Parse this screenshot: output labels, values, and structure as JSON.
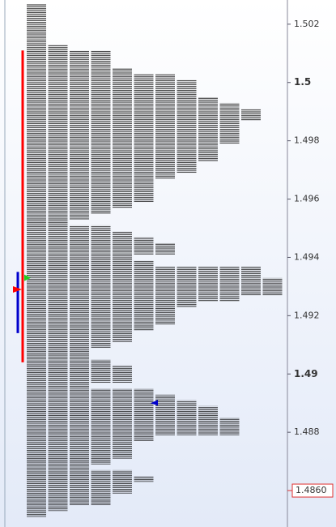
{
  "chart_data": {
    "type": "profile",
    "levels": [
      1.5026,
      1.5024,
      1.5022,
      1.502,
      1.5018,
      1.5016,
      1.5014,
      1.5012,
      1.501,
      1.5008,
      1.5006,
      1.5004,
      1.5002,
      1.5,
      1.4998,
      1.4996,
      1.4994,
      1.4992,
      1.499,
      1.4988,
      1.4986,
      1.4984,
      1.4982,
      1.498,
      1.4978,
      1.4976,
      1.4974,
      1.4972,
      1.497,
      1.4968,
      1.4966,
      1.4964,
      1.4962,
      1.496,
      1.4958,
      1.4956,
      1.4954,
      1.4952,
      1.495,
      1.4948,
      1.4946,
      1.4944,
      1.4942,
      1.494,
      1.4938,
      1.4936,
      1.4934,
      1.4932,
      1.493,
      1.4928,
      1.4926,
      1.4924,
      1.4922,
      1.492,
      1.4918,
      1.4916,
      1.4914,
      1.4912,
      1.491,
      1.4908,
      1.4906,
      1.4904,
      1.4902,
      1.49,
      1.4898,
      1.4896,
      1.4894,
      1.4892,
      1.489,
      1.4888,
      1.4886,
      1.4884,
      1.4882,
      1.488,
      1.4878,
      1.4876,
      1.4874,
      1.4872,
      1.487,
      1.4868,
      1.4866,
      1.4864,
      1.4862,
      1.486,
      1.4858,
      1.4856,
      1.4854,
      1.4852
    ],
    "values": [
      1,
      1,
      1,
      1,
      1,
      1,
      1,
      2,
      4,
      4,
      4,
      5,
      7,
      8,
      8,
      8,
      9,
      10,
      11,
      11,
      10,
      10,
      10,
      10,
      9,
      9,
      9,
      8,
      8,
      7,
      6,
      6,
      6,
      6,
      5,
      4,
      3,
      2,
      4,
      5,
      6,
      7,
      7,
      5,
      6,
      11,
      11,
      12,
      12,
      12,
      10,
      8,
      7,
      7,
      7,
      6,
      5,
      5,
      4,
      3,
      3,
      4,
      5,
      5,
      5,
      3,
      6,
      7,
      8,
      9,
      9,
      10,
      10,
      10,
      6,
      5,
      5,
      5,
      4,
      3,
      5,
      6,
      5,
      5,
      4,
      4,
      2,
      1
    ],
    "color": "#111111",
    "ylim": [
      1.48475,
      1.50283
    ],
    "yticks": [
      1.502,
      1.5,
      1.498,
      1.496,
      1.494,
      1.492,
      1.49,
      1.488
    ],
    "last_price": {
      "value": 1.486,
      "label": "1.4860",
      "color": "#e03030"
    },
    "value_area": {
      "range": [
        1.4904,
        1.5011
      ],
      "color": "#ff0000"
    },
    "initial_balance": {
      "range": [
        1.4914,
        1.4935
      ],
      "color": "#0000cc"
    },
    "poc": {
      "value": 1.4929,
      "color": "#ff0000"
    },
    "open": {
      "value": 1.4933,
      "color": "#22cc22"
    },
    "close": {
      "value": 1.489,
      "color": "#0000cc"
    }
  }
}
